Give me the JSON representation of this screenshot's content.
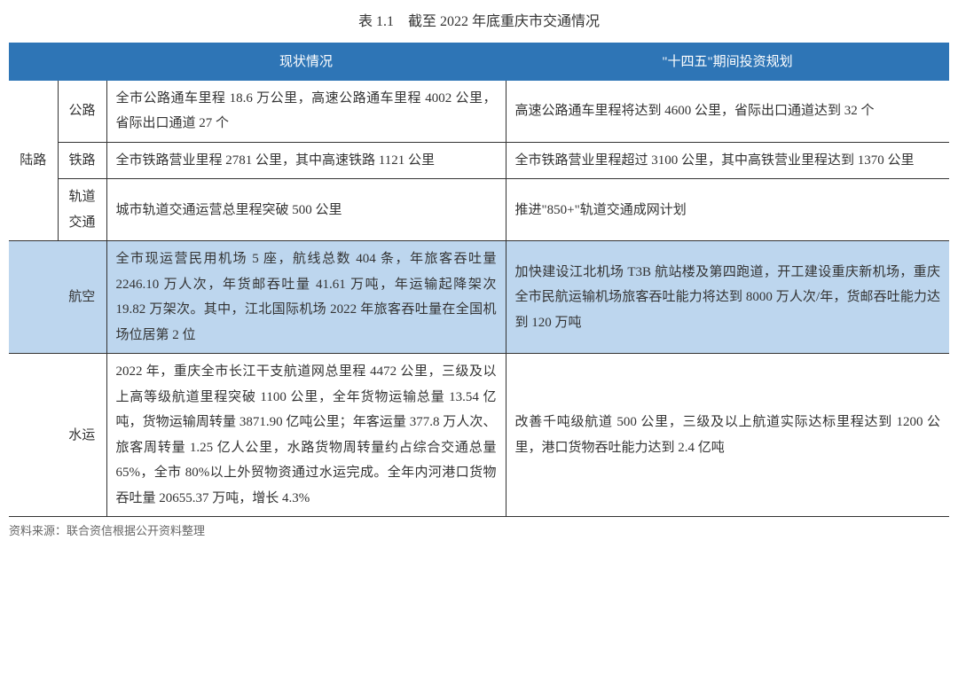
{
  "title": "表 1.1　截至 2022 年底重庆市交通情况",
  "headers": {
    "blank": "",
    "status": "现状情况",
    "plan": "\"十四五\"期间投资规划"
  },
  "rows": {
    "land": {
      "category": "陆路",
      "road": {
        "label": "公路",
        "status": "全市公路通车里程 18.6 万公里，高速公路通车里程 4002 公里，省际出口通道 27 个",
        "plan": "高速公路通车里程将达到 4600 公里，省际出口通道达到 32 个"
      },
      "rail": {
        "label": "铁路",
        "status": "全市铁路营业里程 2781 公里，其中高速铁路 1121 公里",
        "plan": "全市铁路营业里程超过 3100 公里，其中高铁营业里程达到 1370 公里"
      },
      "metro": {
        "label": "轨道交通",
        "status": "城市轨道交通运营总里程突破 500 公里",
        "plan": "推进\"850+\"轨道交通成网计划"
      }
    },
    "air": {
      "label": "航空",
      "status": "全市现运营民用机场 5 座，航线总数 404 条，年旅客吞吐量 2246.10 万人次，年货邮吞吐量 41.61 万吨，年运输起降架次 19.82 万架次。其中，江北国际机场 2022 年旅客吞吐量在全国机场位居第 2 位",
      "plan": "加快建设江北机场 T3B 航站楼及第四跑道，开工建设重庆新机场，重庆全市民航运输机场旅客吞吐能力将达到 8000 万人次/年，货邮吞吐能力达到 120 万吨"
    },
    "water": {
      "label": "水运",
      "status": "2022 年，重庆全市长江干支航道网总里程 4472 公里，三级及以上高等级航道里程突破 1100 公里，全年货物运输总量 13.54 亿吨，货物运输周转量 3871.90 亿吨公里；年客运量 377.8 万人次、旅客周转量 1.25 亿人公里，水路货物周转量约占综合交通总量 65%，全市 80%以上外贸物资通过水运完成。全年内河港口货物吞吐量 20655.37 万吨，增长 4.3%",
      "plan": "改善千吨级航道 500 公里，三级及以上航道实际达标里程达到 1200 公里，港口货物吞吐能力达到 2.4 亿吨"
    }
  },
  "source": "资料来源：联合资信根据公开资料整理",
  "colors": {
    "header_bg": "#2e75b6",
    "header_text": "#ffffff",
    "highlight_bg": "#bdd6ee",
    "border": "#333333",
    "text": "#333333",
    "source_text": "#666666"
  }
}
